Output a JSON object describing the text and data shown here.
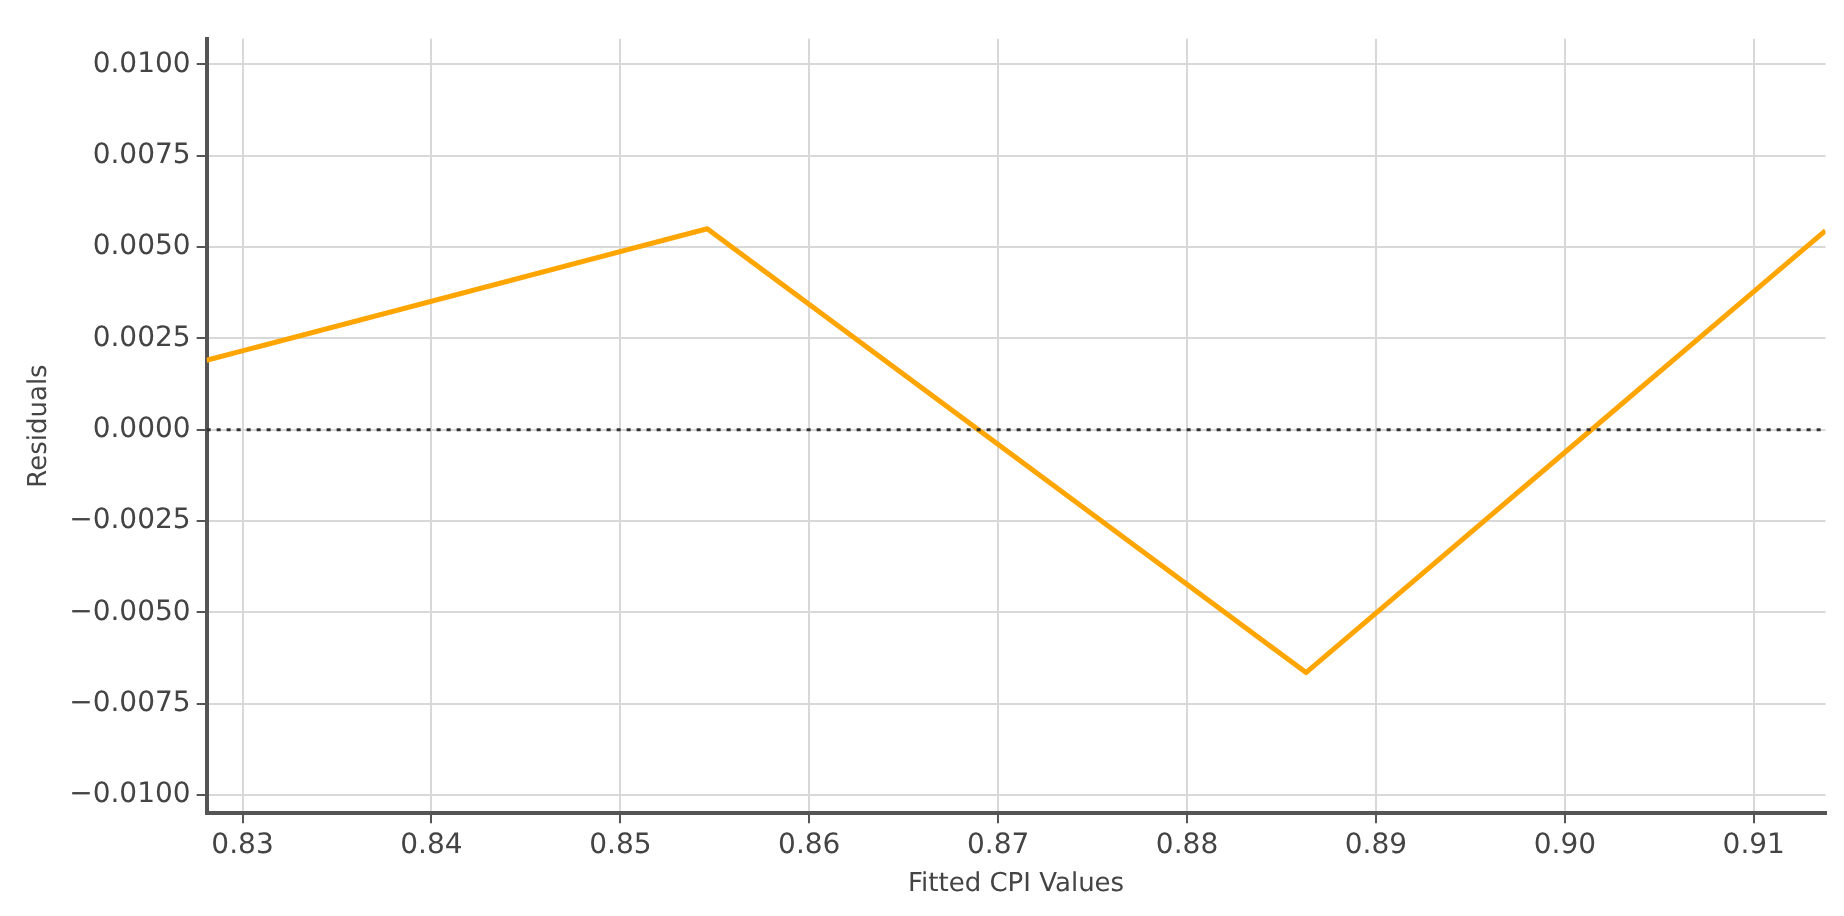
{
  "chart_data": {
    "type": "line",
    "xlabel": "Fitted CPI Values",
    "ylabel": "Residuals",
    "x": [
      0.8281,
      0.8546,
      0.8863,
      0.9138
    ],
    "series": [
      {
        "color": "#ffa500",
        "values": [
          0.0019,
          0.0055,
          -0.00665,
          0.00545
        ]
      }
    ],
    "xlim": [
      0.8281,
      0.9138
    ],
    "xticks": [
      {
        "value": 0.83,
        "label": "0.83"
      },
      {
        "value": 0.84,
        "label": "0.84"
      },
      {
        "value": 0.85,
        "label": "0.85"
      },
      {
        "value": 0.86,
        "label": "0.86"
      },
      {
        "value": 0.87,
        "label": "0.87"
      },
      {
        "value": 0.88,
        "label": "0.88"
      },
      {
        "value": 0.89,
        "label": "0.89"
      },
      {
        "value": 0.9,
        "label": "0.90"
      },
      {
        "value": 0.91,
        "label": "0.91"
      }
    ],
    "ylim": [
      -0.0105,
      0.0107
    ],
    "yticks": [
      {
        "value": -0.01,
        "label": "−0.0100"
      },
      {
        "value": -0.0075,
        "label": "−0.0075"
      },
      {
        "value": -0.005,
        "label": "−0.0050"
      },
      {
        "value": -0.0025,
        "label": "−0.0025"
      },
      {
        "value": 0,
        "label": "0.0000"
      },
      {
        "value": 0.0025,
        "label": "0.0025"
      },
      {
        "value": 0.005,
        "label": "0.0050"
      },
      {
        "value": 0.0075,
        "label": "0.0075"
      },
      {
        "value": 0.01,
        "label": "0.0100"
      }
    ],
    "ref_lines": [
      {
        "axis": "y",
        "value": 0,
        "color": "#333333",
        "line_style": "dotted"
      }
    ],
    "grid": true,
    "marker": "none",
    "line_style": "solid",
    "legend": false
  }
}
